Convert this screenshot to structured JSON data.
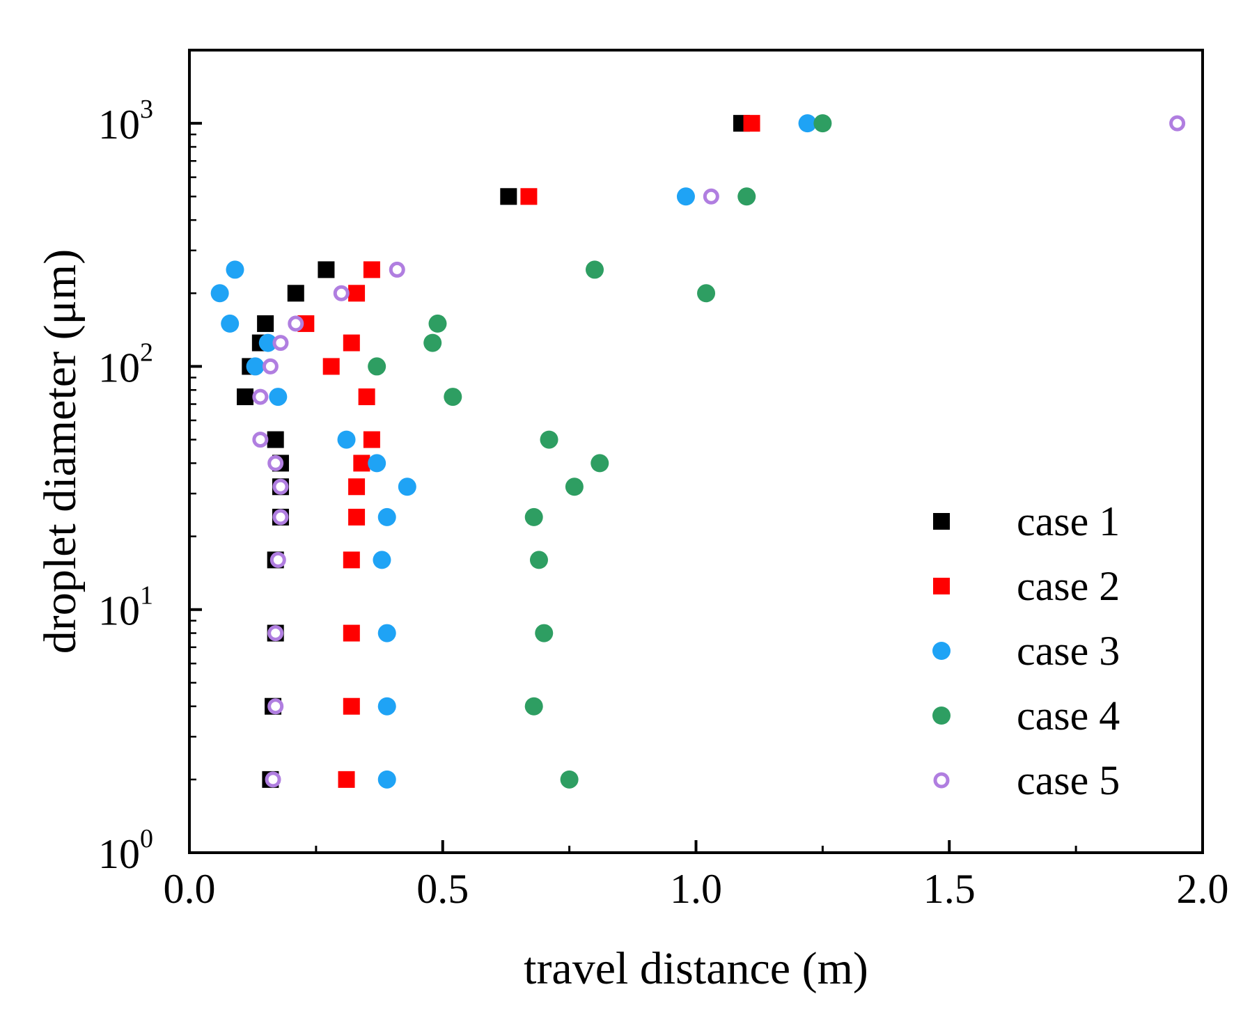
{
  "chart_data": {
    "type": "scatter",
    "title": "",
    "xlabel": "travel distance (m)",
    "ylabel": "droplet diameter (μm)",
    "xlim": [
      0.0,
      2.0
    ],
    "ylim": [
      1,
      2000
    ],
    "yscale": "log",
    "x_ticks": [
      {
        "value": 0.0,
        "label": "0.0"
      },
      {
        "value": 0.5,
        "label": "0.5"
      },
      {
        "value": 1.0,
        "label": "1.0"
      },
      {
        "value": 1.5,
        "label": "1.5"
      },
      {
        "value": 2.0,
        "label": "2.0"
      }
    ],
    "y_ticks": [
      {
        "value": 1,
        "base": "10",
        "exp": "0"
      },
      {
        "value": 10,
        "base": "10",
        "exp": "1"
      },
      {
        "value": 100,
        "base": "10",
        "exp": "2"
      },
      {
        "value": 1000,
        "base": "10",
        "exp": "3"
      }
    ],
    "legend_position": "bottom-right",
    "series": [
      {
        "name": "case 1",
        "marker": "square",
        "color": "#000000",
        "filled": true,
        "points": [
          [
            1.09,
            1000
          ],
          [
            0.63,
            500
          ],
          [
            0.27,
            250
          ],
          [
            0.21,
            200
          ],
          [
            0.15,
            150
          ],
          [
            0.14,
            125
          ],
          [
            0.12,
            100
          ],
          [
            0.11,
            75
          ],
          [
            0.17,
            50
          ],
          [
            0.18,
            40
          ],
          [
            0.18,
            32
          ],
          [
            0.18,
            24
          ],
          [
            0.17,
            16
          ],
          [
            0.17,
            8
          ],
          [
            0.165,
            4
          ],
          [
            0.16,
            2
          ]
        ]
      },
      {
        "name": "case 2",
        "marker": "square",
        "color": "#ff0000",
        "filled": true,
        "points": [
          [
            1.11,
            1000
          ],
          [
            0.67,
            500
          ],
          [
            0.36,
            250
          ],
          [
            0.33,
            200
          ],
          [
            0.23,
            150
          ],
          [
            0.32,
            125
          ],
          [
            0.28,
            100
          ],
          [
            0.35,
            75
          ],
          [
            0.36,
            50
          ],
          [
            0.34,
            40
          ],
          [
            0.33,
            32
          ],
          [
            0.33,
            24
          ],
          [
            0.32,
            16
          ],
          [
            0.32,
            8
          ],
          [
            0.32,
            4
          ],
          [
            0.31,
            2
          ]
        ]
      },
      {
        "name": "case 3",
        "marker": "circle",
        "color": "#1fa3f5",
        "filled": true,
        "points": [
          [
            1.22,
            1000
          ],
          [
            0.98,
            500
          ],
          [
            0.09,
            250
          ],
          [
            0.06,
            200
          ],
          [
            0.08,
            150
          ],
          [
            0.155,
            125
          ],
          [
            0.13,
            100
          ],
          [
            0.175,
            75
          ],
          [
            0.31,
            50
          ],
          [
            0.37,
            40
          ],
          [
            0.43,
            32
          ],
          [
            0.39,
            24
          ],
          [
            0.38,
            16
          ],
          [
            0.39,
            8
          ],
          [
            0.39,
            4
          ],
          [
            0.39,
            2
          ]
        ]
      },
      {
        "name": "case 4",
        "marker": "circle",
        "color": "#2e9e62",
        "filled": true,
        "points": [
          [
            1.25,
            1000
          ],
          [
            1.1,
            500
          ],
          [
            0.8,
            250
          ],
          [
            1.02,
            200
          ],
          [
            0.49,
            150
          ],
          [
            0.48,
            125
          ],
          [
            0.37,
            100
          ],
          [
            0.52,
            75
          ],
          [
            0.71,
            50
          ],
          [
            0.81,
            40
          ],
          [
            0.76,
            32
          ],
          [
            0.68,
            24
          ],
          [
            0.69,
            16
          ],
          [
            0.7,
            8
          ],
          [
            0.68,
            4
          ],
          [
            0.75,
            2
          ]
        ]
      },
      {
        "name": "case 5",
        "marker": "circle",
        "color": "#b07ee0",
        "filled": false,
        "points": [
          [
            1.95,
            1000
          ],
          [
            1.03,
            500
          ],
          [
            0.41,
            250
          ],
          [
            0.3,
            200
          ],
          [
            0.21,
            150
          ],
          [
            0.18,
            125
          ],
          [
            0.16,
            100
          ],
          [
            0.14,
            75
          ],
          [
            0.14,
            50
          ],
          [
            0.17,
            40
          ],
          [
            0.18,
            32
          ],
          [
            0.18,
            24
          ],
          [
            0.175,
            16
          ],
          [
            0.17,
            8
          ],
          [
            0.17,
            4
          ],
          [
            0.165,
            2
          ]
        ]
      }
    ]
  }
}
